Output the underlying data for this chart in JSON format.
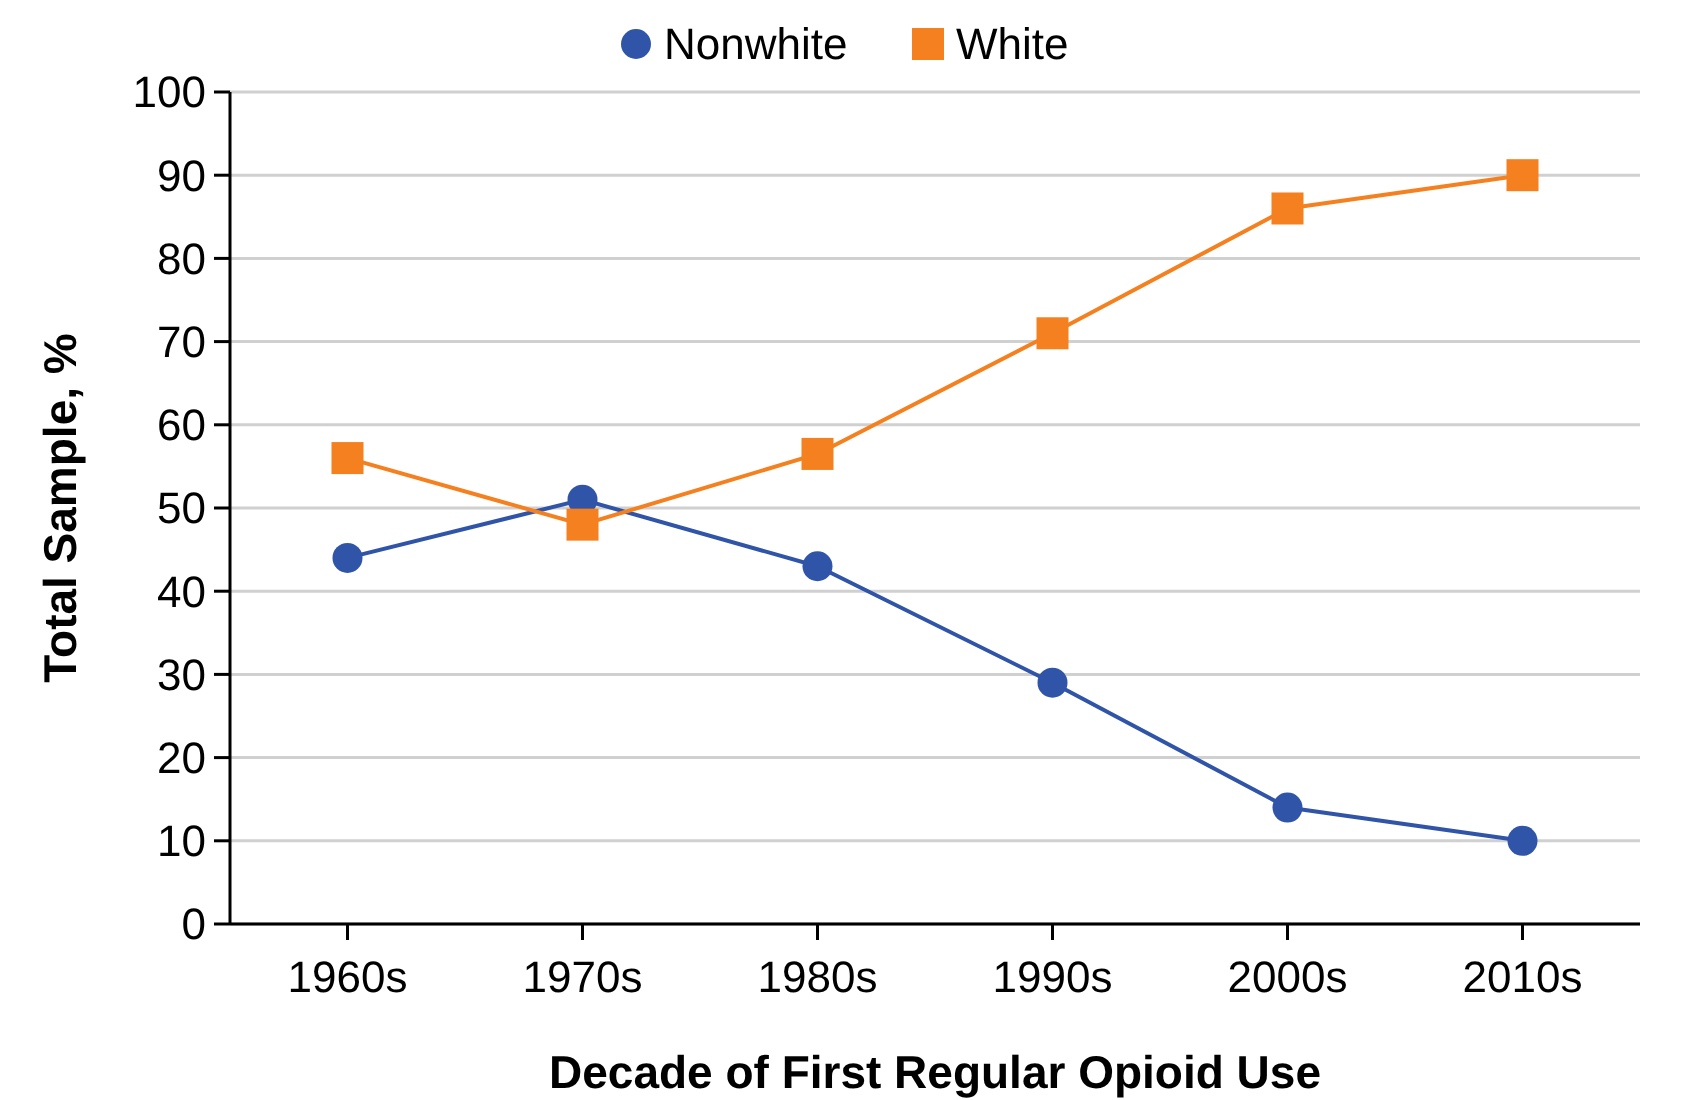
{
  "chart_data": {
    "type": "line",
    "xlabel": "Decade of First Regular Opioid Use",
    "ylabel": "Total Sample, %",
    "categories": [
      "1960s",
      "1970s",
      "1980s",
      "1990s",
      "2000s",
      "2010s"
    ],
    "series": [
      {
        "name": "Nonwhite",
        "color": "#2f54a8",
        "marker": "circle",
        "values": [
          44,
          51,
          43,
          29,
          14,
          10
        ]
      },
      {
        "name": "White",
        "color": "#f5801f",
        "marker": "square",
        "values": [
          56,
          48,
          56.5,
          71,
          86,
          90
        ]
      }
    ],
    "ylim": [
      0,
      100
    ],
    "yticks": [
      0,
      10,
      20,
      30,
      40,
      50,
      60,
      70,
      80,
      90,
      100
    ],
    "grid": "y",
    "legend": "top",
    "line_style": "solid"
  }
}
